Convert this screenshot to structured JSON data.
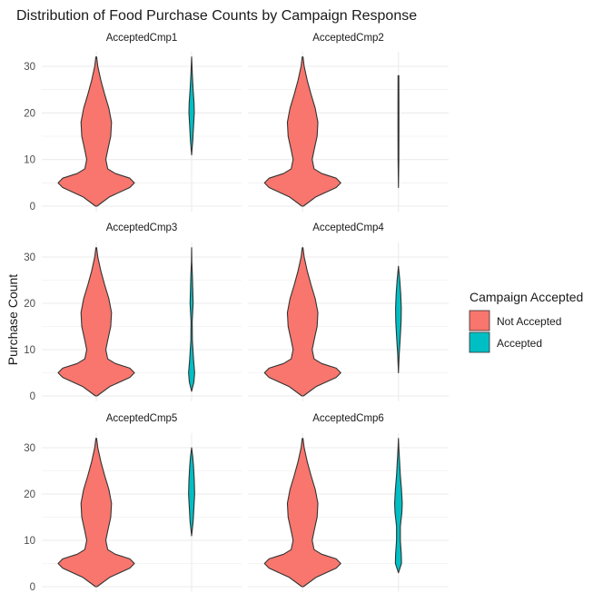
{
  "colors": {
    "not_accepted": "#F8766D",
    "accepted": "#00BFC4",
    "grid": "#ebebeb",
    "outline": "#333333"
  },
  "chart_data": {
    "type": "violin",
    "title": "Distribution of Food Purchase Counts by Campaign Response",
    "ylabel": "Purchase Count",
    "xlabel": "",
    "ylim": [
      0,
      32
    ],
    "yticks": [
      0,
      10,
      20,
      30
    ],
    "grid": true,
    "legend": {
      "title": "Campaign Accepted",
      "placement": "right",
      "entries": [
        "Not Accepted",
        "Accepted"
      ]
    },
    "panels": [
      {
        "name": "AcceptedCmp1",
        "series": [
          {
            "group": "Not Accepted",
            "profile": [
              [
                0,
                0.02
              ],
              [
                2,
                0.35
              ],
              [
                4,
                0.88
              ],
              [
                5,
                1.0
              ],
              [
                6,
                0.88
              ],
              [
                7,
                0.5
              ],
              [
                8,
                0.3
              ],
              [
                10,
                0.25
              ],
              [
                12,
                0.3
              ],
              [
                15,
                0.38
              ],
              [
                18,
                0.4
              ],
              [
                21,
                0.33
              ],
              [
                24,
                0.22
              ],
              [
                27,
                0.12
              ],
              [
                30,
                0.04
              ],
              [
                32,
                0.01
              ]
            ]
          },
          {
            "group": "Accepted",
            "profile": [
              [
                11,
                0.0
              ],
              [
                14,
                0.03
              ],
              [
                17,
                0.05
              ],
              [
                20,
                0.07
              ],
              [
                22,
                0.065
              ],
              [
                25,
                0.04
              ],
              [
                28,
                0.02
              ],
              [
                32,
                0.0
              ]
            ]
          }
        ]
      },
      {
        "name": "AcceptedCmp2",
        "series": [
          {
            "group": "Not Accepted",
            "profile": [
              [
                0,
                0.02
              ],
              [
                2,
                0.35
              ],
              [
                4,
                0.88
              ],
              [
                5,
                1.0
              ],
              [
                6,
                0.88
              ],
              [
                7,
                0.5
              ],
              [
                8,
                0.3
              ],
              [
                10,
                0.25
              ],
              [
                12,
                0.3
              ],
              [
                15,
                0.38
              ],
              [
                18,
                0.4
              ],
              [
                21,
                0.33
              ],
              [
                24,
                0.22
              ],
              [
                27,
                0.12
              ],
              [
                30,
                0.04
              ],
              [
                32,
                0.01
              ]
            ]
          },
          {
            "group": "Accepted",
            "profile": [
              [
                4,
                0.0
              ],
              [
                10,
                0.01
              ],
              [
                16,
                0.012
              ],
              [
                22,
                0.012
              ],
              [
                28,
                0.01
              ]
            ]
          }
        ]
      },
      {
        "name": "AcceptedCmp3",
        "series": [
          {
            "group": "Not Accepted",
            "profile": [
              [
                0,
                0.02
              ],
              [
                2,
                0.35
              ],
              [
                4,
                0.88
              ],
              [
                5,
                1.0
              ],
              [
                6,
                0.88
              ],
              [
                7,
                0.5
              ],
              [
                8,
                0.3
              ],
              [
                10,
                0.25
              ],
              [
                12,
                0.3
              ],
              [
                15,
                0.38
              ],
              [
                18,
                0.4
              ],
              [
                21,
                0.33
              ],
              [
                24,
                0.22
              ],
              [
                27,
                0.12
              ],
              [
                30,
                0.04
              ],
              [
                32,
                0.01
              ]
            ]
          },
          {
            "group": "Accepted",
            "profile": [
              [
                1,
                0.0
              ],
              [
                3,
                0.06
              ],
              [
                5,
                0.08
              ],
              [
                8,
                0.05
              ],
              [
                12,
                0.02
              ],
              [
                16,
                0.015
              ],
              [
                20,
                0.04
              ],
              [
                23,
                0.03
              ],
              [
                26,
                0.02
              ],
              [
                29,
                0.005
              ],
              [
                32,
                0.0
              ]
            ]
          }
        ]
      },
      {
        "name": "AcceptedCmp4",
        "series": [
          {
            "group": "Not Accepted",
            "profile": [
              [
                0,
                0.02
              ],
              [
                2,
                0.35
              ],
              [
                4,
                0.88
              ],
              [
                5,
                1.0
              ],
              [
                6,
                0.88
              ],
              [
                7,
                0.5
              ],
              [
                8,
                0.3
              ],
              [
                10,
                0.25
              ],
              [
                12,
                0.3
              ],
              [
                15,
                0.38
              ],
              [
                18,
                0.4
              ],
              [
                21,
                0.33
              ],
              [
                24,
                0.22
              ],
              [
                27,
                0.12
              ],
              [
                30,
                0.04
              ],
              [
                32,
                0.01
              ]
            ]
          },
          {
            "group": "Accepted",
            "profile": [
              [
                5,
                0.0
              ],
              [
                9,
                0.02
              ],
              [
                13,
                0.05
              ],
              [
                16,
                0.07
              ],
              [
                19,
                0.075
              ],
              [
                22,
                0.06
              ],
              [
                25,
                0.035
              ],
              [
                28,
                0.0
              ]
            ]
          }
        ]
      },
      {
        "name": "AcceptedCmp5",
        "series": [
          {
            "group": "Not Accepted",
            "profile": [
              [
                0,
                0.02
              ],
              [
                2,
                0.35
              ],
              [
                4,
                0.88
              ],
              [
                5,
                1.0
              ],
              [
                6,
                0.88
              ],
              [
                7,
                0.5
              ],
              [
                8,
                0.3
              ],
              [
                10,
                0.25
              ],
              [
                12,
                0.3
              ],
              [
                15,
                0.38
              ],
              [
                18,
                0.4
              ],
              [
                21,
                0.33
              ],
              [
                24,
                0.22
              ],
              [
                27,
                0.12
              ],
              [
                30,
                0.04
              ],
              [
                32,
                0.01
              ]
            ]
          },
          {
            "group": "Accepted",
            "profile": [
              [
                11,
                0.0
              ],
              [
                14,
                0.04
              ],
              [
                17,
                0.06
              ],
              [
                20,
                0.08
              ],
              [
                23,
                0.07
              ],
              [
                26,
                0.05
              ],
              [
                28,
                0.03
              ],
              [
                30,
                0.0
              ]
            ]
          }
        ]
      },
      {
        "name": "AcceptedCmp6",
        "series": [
          {
            "group": "Not Accepted",
            "profile": [
              [
                0,
                0.02
              ],
              [
                2,
                0.35
              ],
              [
                4,
                0.88
              ],
              [
                5,
                1.0
              ],
              [
                6,
                0.88
              ],
              [
                7,
                0.5
              ],
              [
                8,
                0.3
              ],
              [
                10,
                0.25
              ],
              [
                12,
                0.3
              ],
              [
                15,
                0.38
              ],
              [
                18,
                0.4
              ],
              [
                21,
                0.33
              ],
              [
                24,
                0.22
              ],
              [
                27,
                0.12
              ],
              [
                30,
                0.04
              ],
              [
                32,
                0.01
              ]
            ]
          },
          {
            "group": "Accepted",
            "profile": [
              [
                3,
                0.0
              ],
              [
                5,
                0.08
              ],
              [
                7,
                0.075
              ],
              [
                10,
                0.05
              ],
              [
                13,
                0.05
              ],
              [
                16,
                0.09
              ],
              [
                18,
                0.1
              ],
              [
                21,
                0.08
              ],
              [
                24,
                0.05
              ],
              [
                27,
                0.03
              ],
              [
                30,
                0.01
              ],
              [
                32,
                0.0
              ]
            ]
          }
        ]
      }
    ]
  }
}
